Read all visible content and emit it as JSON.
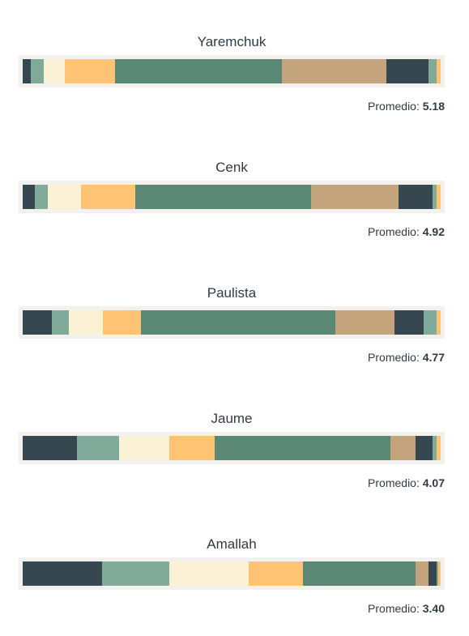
{
  "chart_data": {
    "type": "bar",
    "stacked": true,
    "orientation": "horizontal",
    "normalized": true,
    "average_label": "Promedio:",
    "series_colors": [
      "#37474f",
      "#80aa99",
      "#fbf2d6",
      "#fec473",
      "#5b8775",
      "#c4a47c",
      "#37474f",
      "#80aa99",
      "#fec473"
    ],
    "players": [
      {
        "name": "Yaremchuk",
        "average": "5.18",
        "values": [
          2.0,
          3.0,
          5.0,
          12.0,
          40.0,
          25.0,
          10.0,
          2.0,
          1.0
        ]
      },
      {
        "name": "Cenk",
        "average": "4.92",
        "values": [
          3.0,
          3.0,
          8.0,
          13.0,
          42.0,
          21.0,
          8.0,
          1.0,
          1.0
        ]
      },
      {
        "name": "Paulista",
        "average": "4.77",
        "values": [
          7.0,
          4.0,
          8.0,
          9.0,
          46.0,
          14.0,
          7.0,
          3.0,
          1.0
        ]
      },
      {
        "name": "Jaume",
        "average": "4.07",
        "values": [
          13.0,
          10.0,
          12.0,
          11.0,
          42.0,
          6.0,
          4.0,
          1.0,
          1.0
        ]
      },
      {
        "name": "Amallah",
        "average": "3.40",
        "values": [
          19.0,
          16.0,
          19.0,
          13.0,
          27.0,
          3.0,
          2.0,
          0.5,
          0.5
        ]
      }
    ]
  }
}
